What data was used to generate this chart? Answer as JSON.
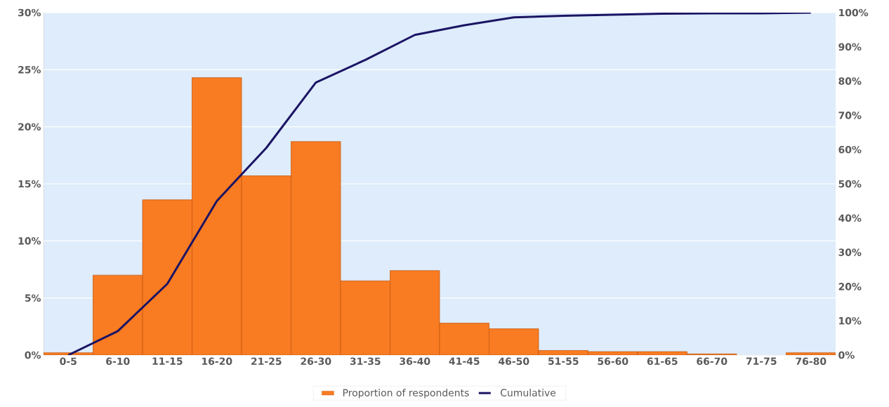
{
  "chart_data": {
    "type": "bar",
    "categories": [
      "0-5",
      "6-10",
      "11-15",
      "16-20",
      "21-25",
      "26-30",
      "31-35",
      "36-40",
      "41-45",
      "46-50",
      "51-55",
      "56-60",
      "61-65",
      "66-70",
      "71-75",
      "76-80"
    ],
    "series": [
      {
        "name": "Proportion of respondents",
        "color": "#f97b22",
        "values": [
          0.2,
          7.0,
          13.6,
          24.3,
          15.7,
          18.7,
          6.5,
          7.4,
          2.8,
          2.3,
          0.4,
          0.3,
          0.3,
          0.1,
          0,
          0.2
        ]
      },
      {
        "name": "Cumulative",
        "type": "line",
        "axis": "y2",
        "color": "#1b1464",
        "values": [
          0,
          7.0,
          20.8,
          45.0,
          60.5,
          79.6,
          86.2,
          93.5,
          96.3,
          98.6,
          99.1,
          99.4,
          99.7,
          99.8,
          99.8,
          100
        ]
      }
    ],
    "ylim": [
      0,
      30
    ],
    "yticks": [
      {
        "value": 0,
        "label": "0%"
      },
      {
        "value": 5,
        "label": "5%"
      },
      {
        "value": 10,
        "label": "10%"
      },
      {
        "value": 15,
        "label": "15%"
      },
      {
        "value": 20,
        "label": "20%"
      },
      {
        "value": 25,
        "label": "25%"
      },
      {
        "value": 30,
        "label": "30%"
      }
    ],
    "y2lim": [
      0,
      100
    ],
    "y2ticks": [
      {
        "value": 0,
        "label": "0%"
      },
      {
        "value": 10,
        "label": "10%"
      },
      {
        "value": 20,
        "label": "20%"
      },
      {
        "value": 30,
        "label": "30%"
      },
      {
        "value": 40,
        "label": "40%"
      },
      {
        "value": 50,
        "label": "50%"
      },
      {
        "value": 60,
        "label": "60%"
      },
      {
        "value": 70,
        "label": "70%"
      },
      {
        "value": 80,
        "label": "80%"
      },
      {
        "value": 90,
        "label": "90%"
      },
      {
        "value": 100,
        "label": "100%"
      }
    ],
    "grid": "y",
    "legend": "bottom"
  }
}
